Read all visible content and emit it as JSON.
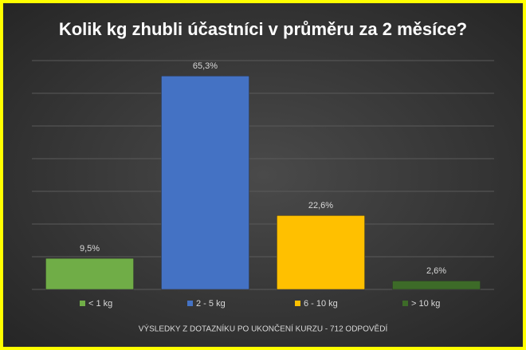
{
  "chart_data": {
    "type": "bar",
    "title": "Kolik kg zhubli účastníci v průměru za 2 měsíce?",
    "categories": [
      "< 1 kg",
      "2 - 5 kg",
      "6 - 10 kg",
      "> 10 kg"
    ],
    "values": [
      9.5,
      65.3,
      22.6,
      2.6
    ],
    "value_labels": [
      "9,5%",
      "65,3%",
      "22,6%",
      "2,6%"
    ],
    "colors": [
      "#70ad47",
      "#4472c4",
      "#ffc000",
      "#3d6b28"
    ],
    "ylim": [
      0,
      70
    ],
    "yticks": [
      0,
      10,
      20,
      30,
      40,
      50,
      60,
      70
    ],
    "grid": true,
    "legend": "bottom",
    "footnote": "VÝSLEDKY Z DOTAZNÍKU PO UKONČENÍ KURZU - 712 ODPOVĚDÍ"
  }
}
